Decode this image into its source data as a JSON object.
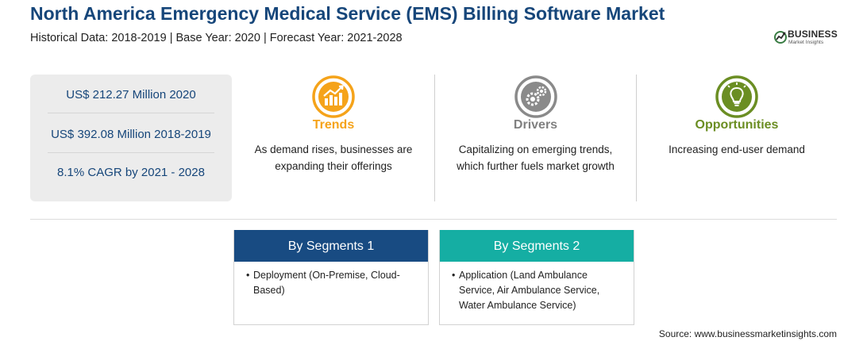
{
  "header": {
    "title": "North America Emergency Medical Service (EMS) Billing Software Market",
    "subtitle": "Historical Data: 2018-2019 | Base Year: 2020 | Forecast Year: 2021-2028"
  },
  "logo": {
    "name": "BUSINESS",
    "tagline": "Market Insights"
  },
  "stats": [
    "US$ 212.27 Million 2020",
    "US$ 392.08 Million 2018-2019",
    "8.1% CAGR by 2021 - 2028"
  ],
  "insights": [
    {
      "heading": "Trends",
      "description": "As demand rises, businesses are expanding their offerings",
      "color": "#f5a31a",
      "icon": "growth-chart-icon"
    },
    {
      "heading": "Drivers",
      "description": "Capitalizing on emerging trends, which further fuels market growth",
      "color": "#8a8a8a",
      "icon": "gears-icon"
    },
    {
      "heading": "Opportunities",
      "description": "Increasing end-user demand",
      "color": "#6b8e23",
      "icon": "lightbulb-icon"
    }
  ],
  "segments": [
    {
      "title": "By Segments 1",
      "bullet": "•",
      "item": "Deployment (On-Premise, Cloud-Based)",
      "color": "#184b82"
    },
    {
      "title": "By Segments 2",
      "bullet": "•",
      "item": "Application (Land Ambulance Service, Air Ambulance Service, Water Ambulance Service)",
      "color": "#15aea3"
    }
  ],
  "source": "Source: www.businessmarketinsights.com"
}
